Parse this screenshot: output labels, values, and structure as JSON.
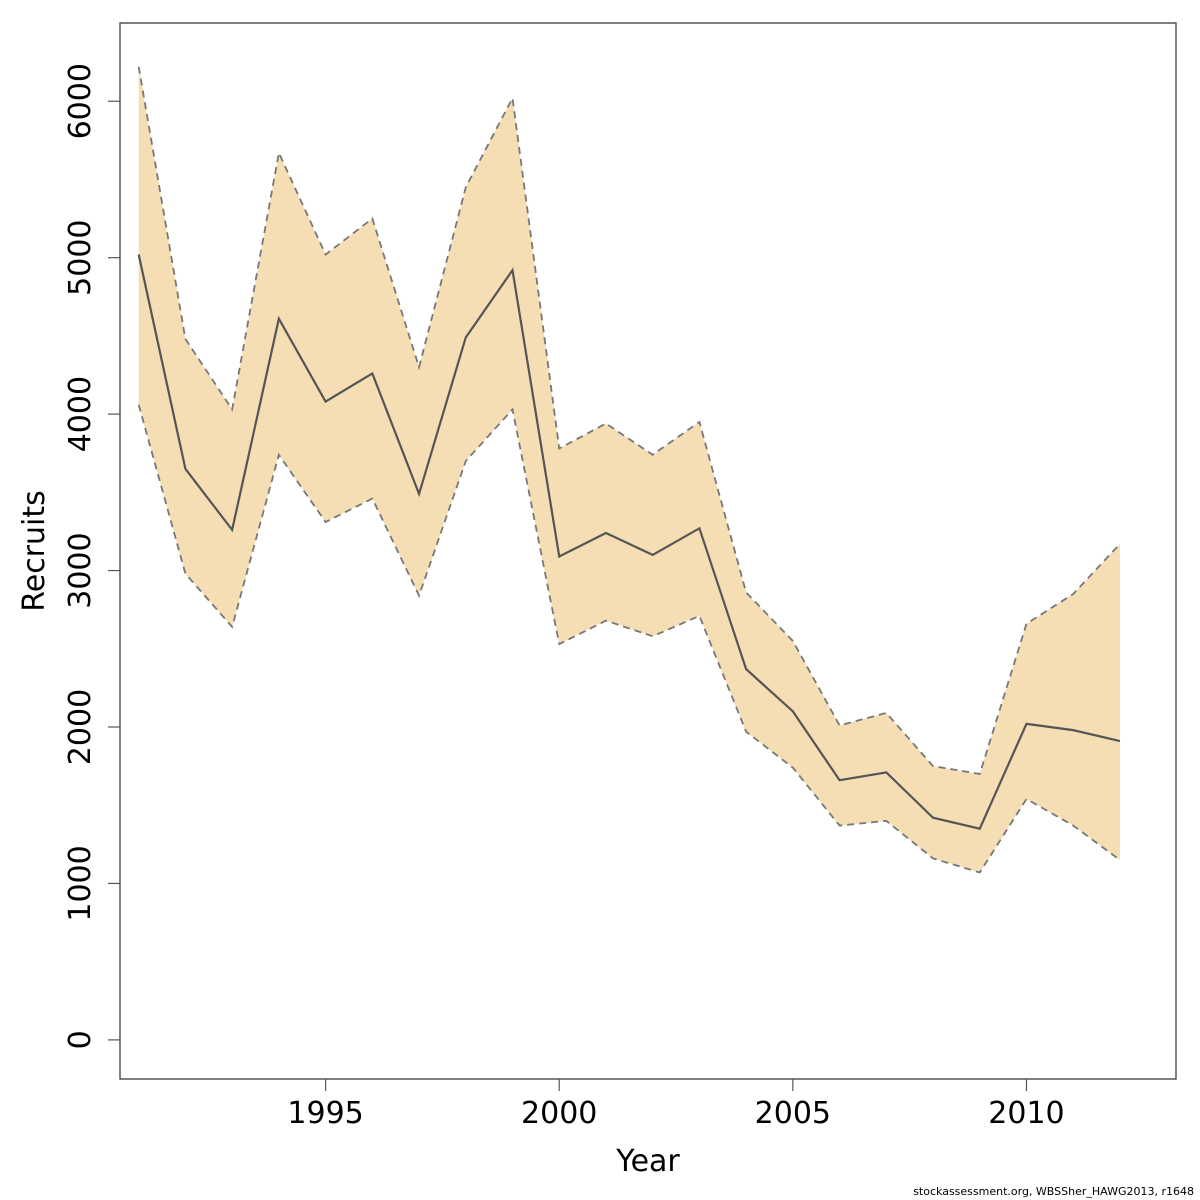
{
  "chart_data": {
    "type": "line",
    "title": "",
    "xlabel": "Year",
    "ylabel": "Recruits",
    "xlim": [
      1990.6,
      2013.2
    ],
    "ylim": [
      -250,
      6500
    ],
    "x_ticks": [
      1995,
      2000,
      2005,
      2010
    ],
    "y_ticks": [
      0,
      1000,
      2000,
      3000,
      4000,
      5000,
      6000
    ],
    "grid": false,
    "legend": "none",
    "colors": {
      "band": "#f5deb3",
      "line": "#555555",
      "bounds": "#777777",
      "frame": "#555555"
    },
    "x": [
      1991,
      1992,
      1993,
      1994,
      1995,
      1996,
      1997,
      1998,
      1999,
      2000,
      2001,
      2002,
      2003,
      2004,
      2005,
      2006,
      2007,
      2008,
      2009,
      2010,
      2011,
      2012
    ],
    "series": [
      {
        "role": "estimate",
        "values": [
          5020,
          3650,
          3260,
          4610,
          4080,
          4260,
          3490,
          4490,
          4920,
          3090,
          3240,
          3100,
          3270,
          2370,
          2100,
          1660,
          1710,
          1420,
          1350,
          2020,
          1980,
          1910
        ]
      },
      {
        "role": "upper",
        "values": [
          6220,
          4480,
          4030,
          5670,
          5020,
          5250,
          4300,
          5450,
          6020,
          3780,
          3940,
          3740,
          3950,
          2860,
          2550,
          2010,
          2090,
          1750,
          1700,
          2660,
          2850,
          3170
        ]
      },
      {
        "role": "lower",
        "values": [
          4060,
          2980,
          2640,
          3740,
          3310,
          3460,
          2840,
          3700,
          4030,
          2530,
          2680,
          2580,
          2710,
          1970,
          1740,
          1370,
          1400,
          1160,
          1070,
          1540,
          1370,
          1150
        ]
      }
    ]
  },
  "footer": {
    "credit": "stockassessment.org, WBSSher_HAWG2013, r1648"
  }
}
